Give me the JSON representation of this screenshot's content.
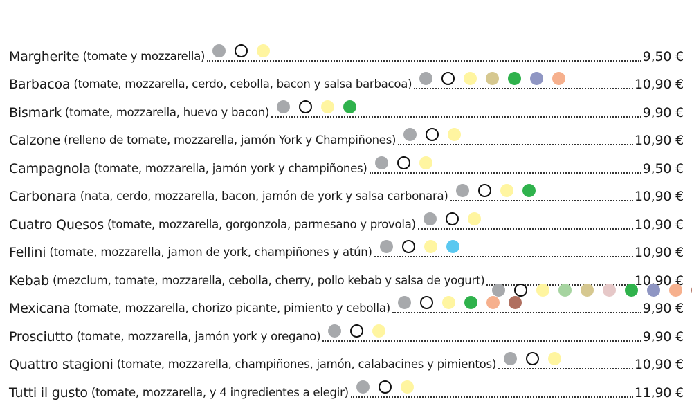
{
  "ingredient_colors": {
    "tomato": "#a7a9ac",
    "mozzarella": "#ffffff",
    "ham_or_base": "#fff5a0",
    "mushroom": "#d6c890",
    "green": "#2fb24c",
    "purple": "#8f96c3",
    "salmon": "#f6b08d",
    "blue": "#5ac8f0",
    "light_green": "#a6d4a0",
    "pink_light": "#e6c8c8",
    "brown": "#b07060",
    "magenta": "#c8508c"
  },
  "pizzas": [
    {
      "name": "Margherite",
      "desc": "(tomate y mozzarella)",
      "price": "9,50 €",
      "icons": [
        "tomato-dot-icon",
        "mozzarella-ring-icon",
        "cheese-dot-icon"
      ]
    },
    {
      "name": "Barbacoa",
      "desc": "(tomate, mozzarella, cerdo, cebolla, bacon y salsa barbacoa)",
      "price": "10,90 €",
      "icons": [
        "tomato-dot-icon",
        "mozzarella-ring-icon",
        "cheese-dot-icon",
        "mushroom-dot-icon",
        "green-dot-icon",
        "purple-dot-icon",
        "salmon-dot-icon"
      ]
    },
    {
      "name": "Bismark",
      "desc": "(tomate, mozzarella, huevo y bacon)",
      "price": "9,90 €",
      "icons": [
        "tomato-dot-icon",
        "mozzarella-ring-icon",
        "cheese-dot-icon",
        "green-dot-icon"
      ]
    },
    {
      "name": "Calzone",
      "desc": "(relleno de tomate, mozzarella, jamón York y Champiñones)",
      "price": "10,90 €",
      "icons": [
        "tomato-dot-icon",
        "mozzarella-ring-icon",
        "cheese-dot-icon"
      ]
    },
    {
      "name": "Campagnola",
      "desc": "(tomate, mozzarella, jamón york y champiñones)",
      "price": "9,50 €",
      "icons": [
        "tomato-dot-icon",
        "mozzarella-ring-icon",
        "cheese-dot-icon"
      ]
    },
    {
      "name": "Carbonara",
      "desc": "(nata, cerdo, mozzarella, bacon, jamón de york y salsa carbonara)",
      "price": "10,90 €",
      "icons": [
        "tomato-dot-icon",
        "mozzarella-ring-icon",
        "cheese-dot-icon",
        "green-dot-icon"
      ]
    },
    {
      "name": "Cuatro Quesos",
      "desc": "(tomate, mozzarella, gorgonzola, parmesano y provola)",
      "price": "10,90 €",
      "icons": [
        "tomato-dot-icon",
        "mozzarella-ring-icon",
        "cheese-dot-icon"
      ]
    },
    {
      "name": "Fellini",
      "desc": "(tomate, mozzarella, jamon de york, champiñones y atún)",
      "price": "10,90 €",
      "icons": [
        "tomato-dot-icon",
        "mozzarella-ring-icon",
        "cheese-dot-icon",
        "blue-dot-icon"
      ]
    },
    {
      "name": "Kebab",
      "desc": "(mezclum, tomate, mozzarella, cebolla, cherry, pollo kebab y salsa de yogurt)",
      "price": "10,90 €",
      "icons": [
        "tomato-dot-icon",
        "mozzarella-ring-icon",
        "cheese-dot-icon",
        "light-green-dot-icon",
        "mushroom-dot-icon",
        "pink-dot-icon",
        "green-dot-icon",
        "purple-dot-icon",
        "salmon-dot-icon",
        "brown-dot-icon",
        "magenta-dot-icon"
      ]
    },
    {
      "name": "Mexicana",
      "desc": "(tomate, mozzarella, chorizo picante, pimiento y cebolla)",
      "price": "9,90 €",
      "icons": [
        "tomato-dot-icon",
        "mozzarella-ring-icon",
        "cheese-dot-icon",
        "green-dot-icon",
        "salmon-dot-icon",
        "brown-dot-icon"
      ]
    },
    {
      "name": "Prosciutto",
      "desc": "(tomate, mozzarella, jamón york y oregano)",
      "price": "9,90 €",
      "icons": [
        "tomato-dot-icon",
        "mozzarella-ring-icon",
        "cheese-dot-icon"
      ]
    },
    {
      "name": "Quattro stagioni",
      "desc": "(tomate, mozzarella, champiñones, jamón, calabacines y pimientos)",
      "price": "10,90 €",
      "icons": [
        "tomato-dot-icon",
        "mozzarella-ring-icon",
        "cheese-dot-icon"
      ]
    },
    {
      "name": "Tutti il gusto",
      "desc": "(tomate, mozzarella, y 4 ingredientes a elegir)",
      "price": "11,90 €",
      "icons": [
        "tomato-dot-icon",
        "mozzarella-ring-icon",
        "cheese-dot-icon"
      ]
    }
  ]
}
